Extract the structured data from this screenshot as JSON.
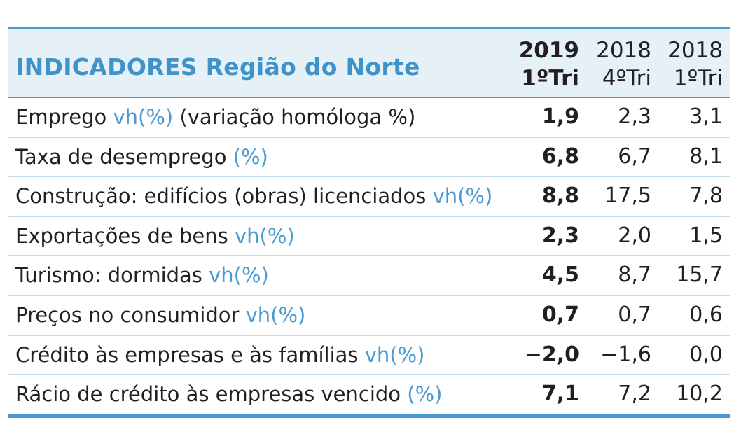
{
  "title": "INDICADORES Região do Norte",
  "columns": [
    {
      "year": "2019",
      "quarter": "1ºTri"
    },
    {
      "year": "2018",
      "quarter": "4ºTri"
    },
    {
      "year": "2018",
      "quarter": "1ºTri"
    }
  ],
  "rows": [
    {
      "label": "Emprego",
      "unit": "vh(%)",
      "suffix": "(variação homóloga %)",
      "values": [
        "1,9",
        "2,3",
        "3,1"
      ]
    },
    {
      "label": "Taxa de desemprego",
      "unit": "(%)",
      "suffix": "",
      "values": [
        "6,8",
        "6,7",
        "8,1"
      ]
    },
    {
      "label": "Construção: edifícios (obras) licenciados",
      "unit": "vh(%)",
      "suffix": "",
      "values": [
        "8,8",
        "17,5",
        "7,8"
      ]
    },
    {
      "label": "Exportações de bens",
      "unit": "vh(%)",
      "suffix": "",
      "values": [
        "2,3",
        "2,0",
        "1,5"
      ]
    },
    {
      "label": "Turismo: dormidas",
      "unit": "vh(%)",
      "suffix": "",
      "values": [
        "4,5",
        "8,7",
        "15,7"
      ]
    },
    {
      "label": "Preços no consumidor",
      "unit": "vh(%)",
      "suffix": "",
      "values": [
        "0,7",
        "0,7",
        "0,6"
      ]
    },
    {
      "label": "Crédito às empresas e às famílias",
      "unit": "vh(%)",
      "suffix": "",
      "values": [
        "−2,0",
        "−1,6",
        "0,0"
      ]
    },
    {
      "label": "Rácio de crédito às empresas vencido",
      "unit": "(%)",
      "suffix": "",
      "values": [
        "7,1",
        "7,2",
        "10,2"
      ]
    }
  ],
  "colors": {
    "accent": "#4b9bd1",
    "header_bg": "#e6f0f7",
    "row_rule": "#c3dceb",
    "text": "#231f20"
  }
}
